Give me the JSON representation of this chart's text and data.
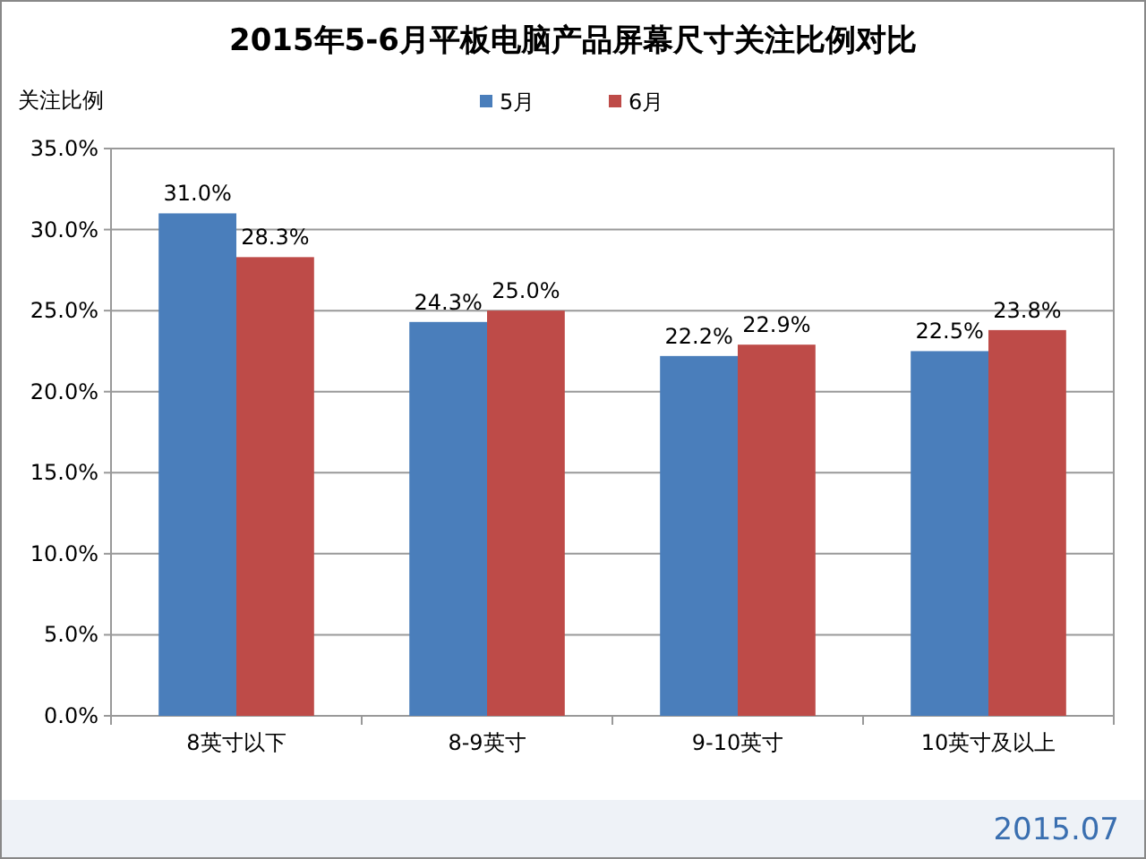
{
  "chart_data": {
    "type": "bar",
    "title": "2015年5-6月平板电脑产品屏幕尺寸关注比例对比",
    "ylabel": "关注比例",
    "categories": [
      "8英寸以下",
      "8-9英寸",
      "9-10英寸",
      "10英寸及以上"
    ],
    "series": [
      {
        "name": "5月",
        "color": "#4a7ebb",
        "values": [
          31.0,
          24.3,
          22.2,
          22.5
        ],
        "value_labels": [
          "31.0%",
          "24.3%",
          "22.2%",
          "22.5%"
        ]
      },
      {
        "name": "6月",
        "color": "#be4b48",
        "values": [
          28.3,
          25.0,
          22.9,
          23.8
        ],
        "value_labels": [
          "28.3%",
          "25.0%",
          "22.9%",
          "23.8%"
        ]
      }
    ],
    "ylim": [
      0,
      35
    ],
    "yticks": [
      {
        "value": 0,
        "label": "0.0%"
      },
      {
        "value": 5,
        "label": "5.0%"
      },
      {
        "value": 10,
        "label": "10.0%"
      },
      {
        "value": 15,
        "label": "15.0%"
      },
      {
        "value": 20,
        "label": "20.0%"
      },
      {
        "value": 25,
        "label": "25.0%"
      },
      {
        "value": 30,
        "label": "30.0%"
      },
      {
        "value": 35,
        "label": "35.0%"
      }
    ],
    "grid": "y",
    "legend": "top",
    "annotations": [
      "2015.07"
    ]
  }
}
